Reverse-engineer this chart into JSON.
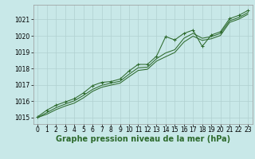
{
  "title": "Graphe pression niveau de la mer (hPa)",
  "background_color": "#c8e8e8",
  "grid_color": "#b0d0d0",
  "line_color": "#2d6a2d",
  "xlim": [
    -0.5,
    23.5
  ],
  "ylim": [
    1014.6,
    1021.9
  ],
  "yticks": [
    1015,
    1016,
    1017,
    1018,
    1019,
    1020,
    1021
  ],
  "xticks": [
    0,
    1,
    2,
    3,
    4,
    5,
    6,
    7,
    8,
    9,
    10,
    11,
    12,
    13,
    14,
    15,
    16,
    17,
    18,
    19,
    20,
    21,
    22,
    23
  ],
  "series": {
    "line_high": [
      1015.05,
      1015.45,
      1015.75,
      1015.95,
      1016.15,
      1016.5,
      1016.95,
      1017.15,
      1017.2,
      1017.35,
      1017.85,
      1018.25,
      1018.25,
      1018.75,
      1019.95,
      1019.75,
      1020.15,
      1020.35,
      1019.35,
      1020.05,
      1020.25,
      1021.05,
      1021.25,
      1021.55
    ],
    "line_mid": [
      1015.0,
      1015.3,
      1015.6,
      1015.82,
      1016.02,
      1016.35,
      1016.72,
      1016.97,
      1017.1,
      1017.22,
      1017.65,
      1018.05,
      1018.08,
      1018.6,
      1018.95,
      1019.15,
      1019.85,
      1020.15,
      1019.85,
      1019.95,
      1020.15,
      1020.92,
      1021.12,
      1021.42
    ],
    "line_low": [
      1015.0,
      1015.2,
      1015.48,
      1015.7,
      1015.88,
      1016.2,
      1016.6,
      1016.85,
      1016.98,
      1017.1,
      1017.5,
      1017.88,
      1017.95,
      1018.45,
      1018.72,
      1018.98,
      1019.62,
      1019.98,
      1019.72,
      1019.82,
      1020.02,
      1020.82,
      1021.02,
      1021.32
    ]
  },
  "title_fontsize": 7.0,
  "tick_fontsize": 5.5,
  "lw": 0.75
}
